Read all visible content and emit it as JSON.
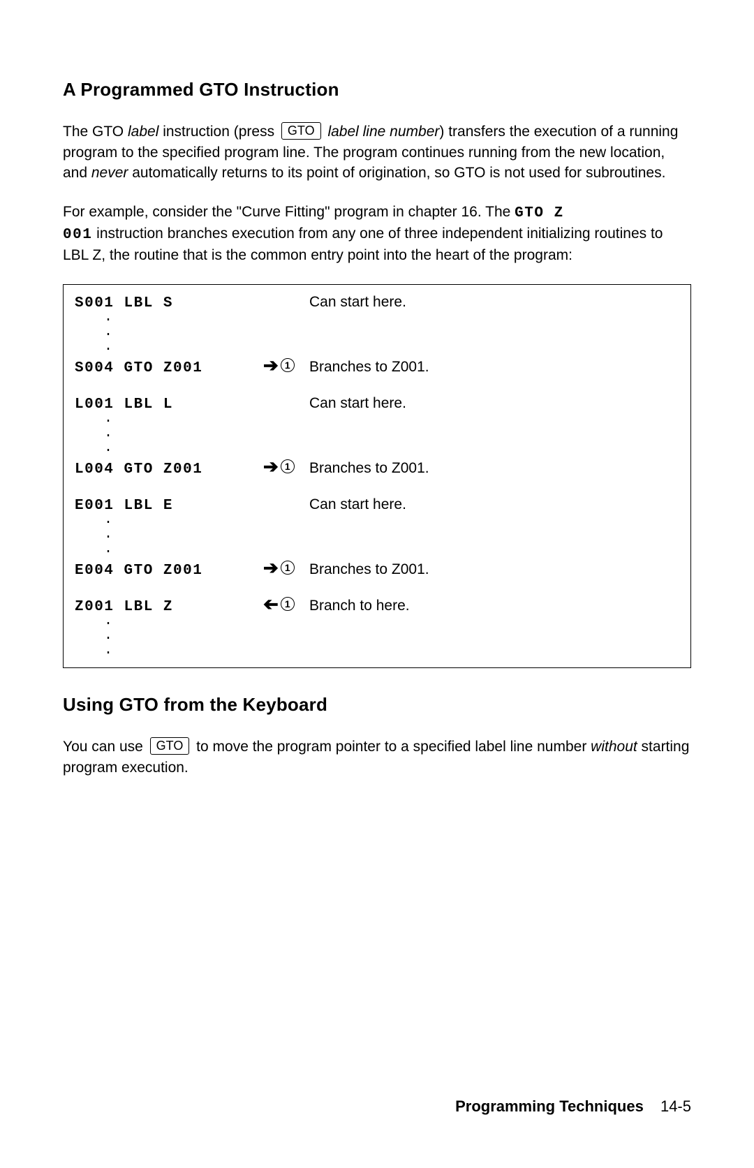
{
  "section1": {
    "heading": "A Programmed GTO Instruction",
    "para1_pre": "The GTO ",
    "para1_label_word": "label",
    "para1_mid": " instruction (press ",
    "keycap_gto": "GTO",
    "para1_after_key": " ",
    "para1_lln": "label line number",
    "para1_tail": ") transfers the execution of a running program to the specified program line. The program continues running from the new location, and ",
    "para1_never": "never",
    "para1_tail2": " automatically returns to its point of origination, so GTO is not used for subroutines.",
    "para2_a": "For example, consider the \"Curve Fitting\" program in chapter 16. The ",
    "para2_code1": "GTO Z",
    "para2_code2": "001",
    "para2_b": " instruction branches execution from any one of three independent initializing routines to LBL Z, the routine that is the common entry point into the heart of the program:"
  },
  "listing": {
    "rows": [
      {
        "code": "S001 LBL S",
        "arrow": "",
        "desc": "Can start here."
      },
      {
        "dots": true
      },
      {
        "code": "S004 GTO Z001",
        "arrow": "r1",
        "desc": "Branches to Z001."
      },
      {
        "gap": true
      },
      {
        "code": "L001 LBL L",
        "arrow": "",
        "desc": "Can start here."
      },
      {
        "dots": true
      },
      {
        "code": "L004 GTO Z001",
        "arrow": "r1",
        "desc": "Branches to Z001."
      },
      {
        "gap": true
      },
      {
        "code": "E001 LBL E",
        "arrow": "",
        "desc": "Can start here."
      },
      {
        "dots": true
      },
      {
        "code": "E004 GTO Z001",
        "arrow": "r1",
        "desc": "Branches to Z001."
      },
      {
        "gap": true
      },
      {
        "code": "Z001 LBL Z",
        "arrow": "l1",
        "desc": "Branch to here."
      },
      {
        "dots": true
      }
    ],
    "circle_digit": "1"
  },
  "section2": {
    "heading": "Using GTO from the Keyboard",
    "para_a": "You can use ",
    "keycap_gto": "GTO",
    "para_b": " to move the program pointer to a specified label line number ",
    "para_without": "without",
    "para_c": " starting program execution."
  },
  "footer": {
    "title": "Programming Techniques",
    "page": "14-5"
  }
}
